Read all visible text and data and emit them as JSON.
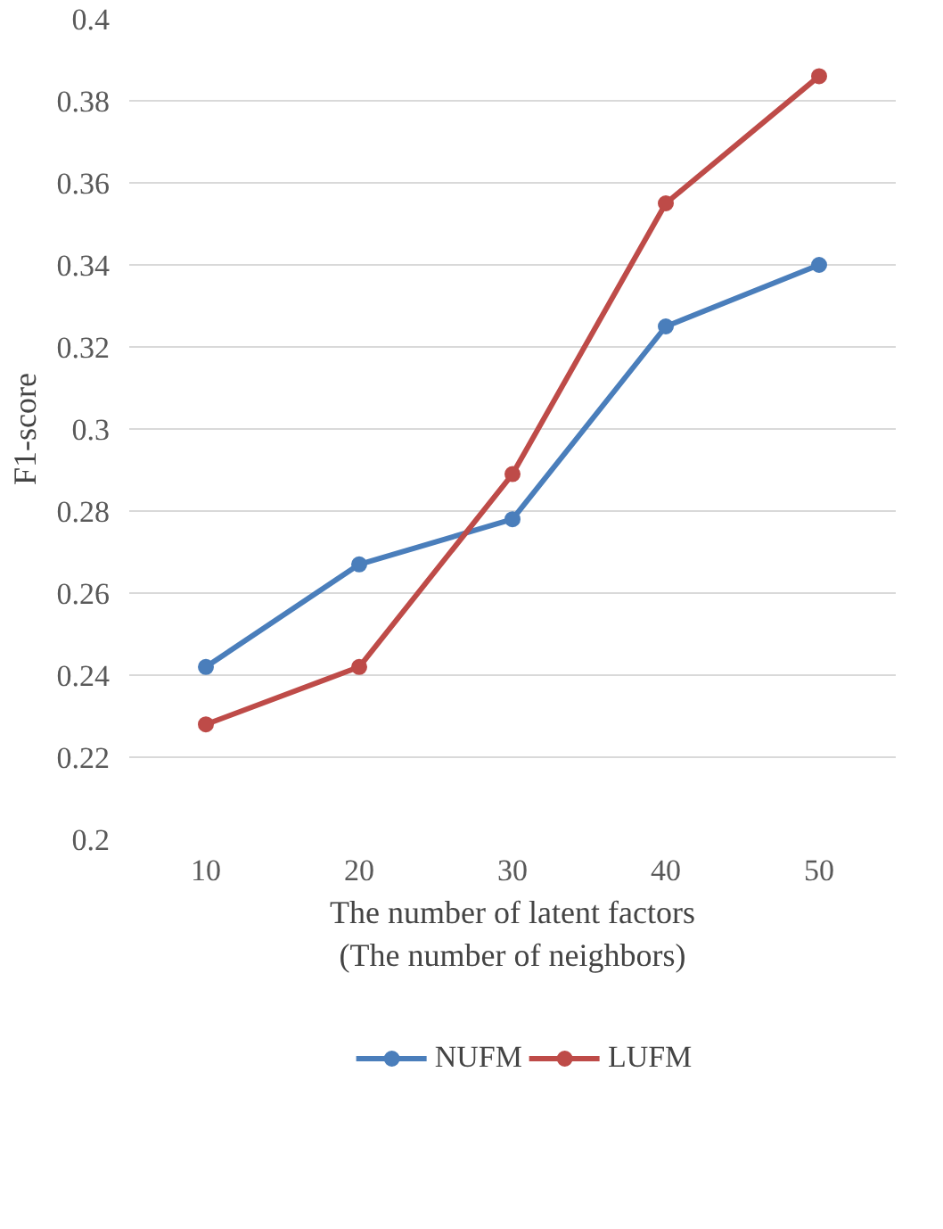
{
  "chart_data": {
    "type": "line",
    "categories": [
      "10",
      "20",
      "30",
      "40",
      "50"
    ],
    "series": [
      {
        "name": "NUFM",
        "color": "#4a7ebb",
        "values": [
          0.242,
          0.267,
          0.278,
          0.325,
          0.34
        ]
      },
      {
        "name": "LUFM",
        "color": "#be4b48",
        "values": [
          0.228,
          0.242,
          0.289,
          0.355,
          0.386
        ]
      }
    ],
    "xlabel": "The number of latent factors\n(The number of neighbors)",
    "ylabel": "F1-score",
    "ylim": [
      0.2,
      0.4
    ],
    "yticks": [
      0.2,
      0.22,
      0.24,
      0.26,
      0.28,
      0.3,
      0.32,
      0.34,
      0.36,
      0.38,
      0.4
    ],
    "grid": "y",
    "legend": "bottom",
    "marker": "circle",
    "line_style": "solid"
  }
}
